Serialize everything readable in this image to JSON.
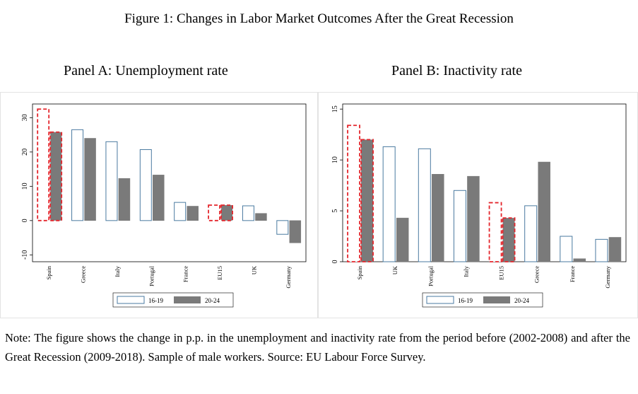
{
  "figure_title": "Figure 1: Changes in Labor Market Outcomes After the Great Recession",
  "note": "Note: The figure shows the change in p.p. in the unemployment and inactivity rate from the period before (2002-2008) and after the Great Recession (2009-2018). Sample of male workers. Source: EU Labour Force Survey.",
  "colors": {
    "series_16_19_stroke": "#4a7aa0",
    "series_20_24_fill": "#7a7a7a",
    "highlight": "#e4252b"
  },
  "chart_data": [
    {
      "type": "bar",
      "title": "Panel A: Unemployment rate",
      "categories": [
        "Spain",
        "Greece",
        "Italy",
        "Portugal",
        "France",
        "EU15",
        "UK",
        "Germany"
      ],
      "series": [
        {
          "name": "16-19",
          "values": [
            32.5,
            26.5,
            23.0,
            20.7,
            5.3,
            4.5,
            4.3,
            -4.0
          ]
        },
        {
          "name": "20-24",
          "values": [
            25.8,
            24.0,
            12.3,
            13.3,
            4.2,
            4.5,
            2.1,
            -6.5
          ]
        }
      ],
      "highlight": [
        "Spain",
        "EU15"
      ],
      "yticks": [
        -10,
        0,
        10,
        20,
        30
      ],
      "ylim": [
        -12,
        34
      ],
      "legend": "bottom",
      "grid": false
    },
    {
      "type": "bar",
      "title": "Panel B: Inactivity rate",
      "categories": [
        "Spain",
        "UK",
        "Portugal",
        "Italy",
        "EU15",
        "Greece",
        "France",
        "Germany"
      ],
      "series": [
        {
          "name": "16-19",
          "values": [
            13.4,
            11.3,
            11.1,
            7.0,
            5.8,
            5.5,
            2.5,
            2.2
          ]
        },
        {
          "name": "20-24",
          "values": [
            12.0,
            4.3,
            8.6,
            8.4,
            4.3,
            9.8,
            0.3,
            2.4
          ]
        }
      ],
      "highlight": [
        "Spain",
        "EU15"
      ],
      "yticks": [
        0,
        5,
        10,
        15
      ],
      "ylim": [
        0,
        15.5
      ],
      "legend": "bottom",
      "grid": false
    }
  ]
}
